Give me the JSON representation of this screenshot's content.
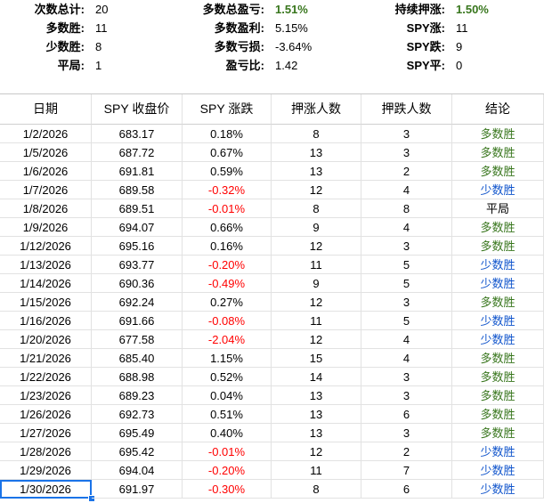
{
  "summary": [
    [
      {
        "label": "次数总计:",
        "value": "20"
      },
      {
        "label": "多数总盈亏:",
        "value": "1.51%",
        "value_color": "#38761d"
      },
      {
        "label": "持续押涨:",
        "value": "1.50%",
        "value_color": "#38761d"
      }
    ],
    [
      {
        "label": "多数胜:",
        "value": "11"
      },
      {
        "label": "多数盈利:",
        "value": "5.15%"
      },
      {
        "label": "SPY涨:",
        "value": "11"
      }
    ],
    [
      {
        "label": "少数胜:",
        "value": "8"
      },
      {
        "label": "多数亏损:",
        "value": "-3.64%"
      },
      {
        "label": "SPY跌:",
        "value": "9"
      }
    ],
    [
      {
        "label": "平局:",
        "value": "1"
      },
      {
        "label": "盈亏比:",
        "value": "1.42"
      },
      {
        "label": "SPY平:",
        "value": "0"
      }
    ]
  ],
  "table": {
    "headers": [
      "日期",
      "SPY 收盘价",
      "SPY 涨跌",
      "押涨人数",
      "押跌人数",
      "结论"
    ],
    "negative_color": "#ff0000",
    "result_colors": {
      "多数胜": "#38761d",
      "少数胜": "#1155cc",
      "平局": "#000000"
    },
    "rows": [
      [
        "1/2/2026",
        "683.17",
        "0.18%",
        "8",
        "3",
        "多数胜"
      ],
      [
        "1/5/2026",
        "687.72",
        "0.67%",
        "13",
        "3",
        "多数胜"
      ],
      [
        "1/6/2026",
        "691.81",
        "0.59%",
        "13",
        "2",
        "多数胜"
      ],
      [
        "1/7/2026",
        "689.58",
        "-0.32%",
        "12",
        "4",
        "少数胜"
      ],
      [
        "1/8/2026",
        "689.51",
        "-0.01%",
        "8",
        "8",
        "平局"
      ],
      [
        "1/9/2026",
        "694.07",
        "0.66%",
        "9",
        "4",
        "多数胜"
      ],
      [
        "1/12/2026",
        "695.16",
        "0.16%",
        "12",
        "3",
        "多数胜"
      ],
      [
        "1/13/2026",
        "693.77",
        "-0.20%",
        "11",
        "5",
        "少数胜"
      ],
      [
        "1/14/2026",
        "690.36",
        "-0.49%",
        "9",
        "5",
        "少数胜"
      ],
      [
        "1/15/2026",
        "692.24",
        "0.27%",
        "12",
        "3",
        "多数胜"
      ],
      [
        "1/16/2026",
        "691.66",
        "-0.08%",
        "11",
        "5",
        "少数胜"
      ],
      [
        "1/20/2026",
        "677.58",
        "-2.04%",
        "12",
        "4",
        "少数胜"
      ],
      [
        "1/21/2026",
        "685.40",
        "1.15%",
        "15",
        "4",
        "多数胜"
      ],
      [
        "1/22/2026",
        "688.98",
        "0.52%",
        "14",
        "3",
        "多数胜"
      ],
      [
        "1/23/2026",
        "689.23",
        "0.04%",
        "13",
        "3",
        "多数胜"
      ],
      [
        "1/26/2026",
        "692.73",
        "0.51%",
        "13",
        "6",
        "多数胜"
      ],
      [
        "1/27/2026",
        "695.49",
        "0.40%",
        "13",
        "3",
        "多数胜"
      ],
      [
        "1/28/2026",
        "695.42",
        "-0.01%",
        "12",
        "2",
        "少数胜"
      ],
      [
        "1/29/2026",
        "694.04",
        "-0.20%",
        "11",
        "7",
        "少数胜"
      ],
      [
        "1/30/2026",
        "691.97",
        "-0.30%",
        "8",
        "6",
        "少数胜"
      ]
    ]
  }
}
